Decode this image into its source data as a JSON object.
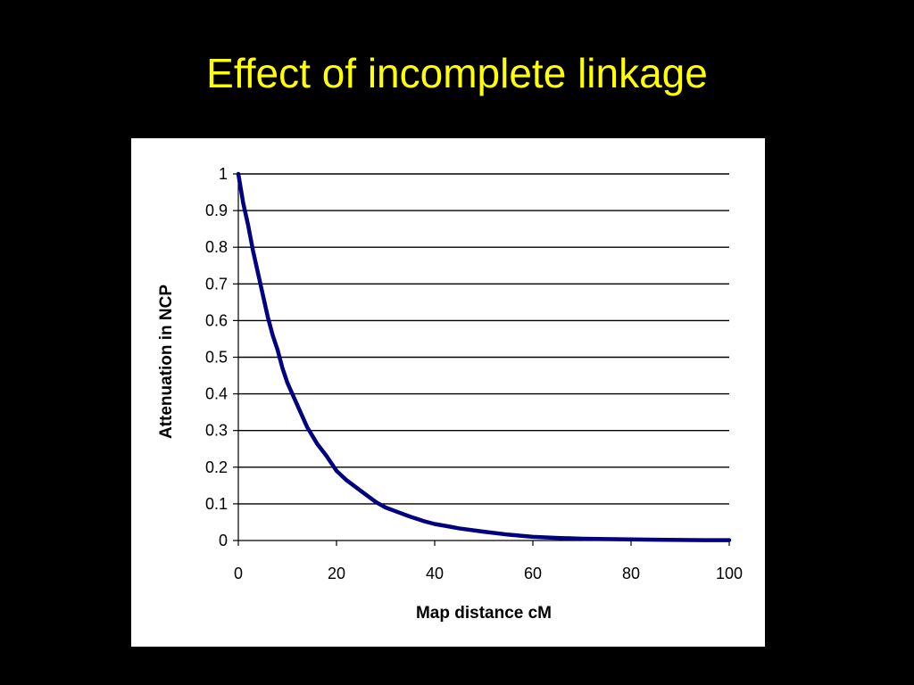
{
  "slide": {
    "title": "Effect of incomplete linkage"
  },
  "colors": {
    "background": "#000000",
    "title": "#ffff00",
    "panel": "#ffffff",
    "series": "#000080",
    "gridline": "#000000"
  },
  "chart_data": {
    "type": "line",
    "xlabel": "Map distance cM",
    "ylabel": "Attenuation in NCP",
    "xlim": [
      0,
      100
    ],
    "ylim": [
      0,
      1
    ],
    "xticks": [
      0,
      20,
      40,
      60,
      80,
      100
    ],
    "yticks": [
      0,
      0.1,
      0.2,
      0.3,
      0.4,
      0.5,
      0.6,
      0.7,
      0.8,
      0.9,
      1
    ],
    "ytick_labels": [
      "0",
      "0.1",
      "0.2",
      "0.3",
      "0.4",
      "0.5",
      "0.6",
      "0.7",
      "0.8",
      "0.9",
      "1"
    ],
    "grid": "horizontal",
    "legend": "none",
    "series": [
      {
        "x": [
          0,
          1,
          2,
          3,
          4,
          5,
          6,
          7,
          8,
          9,
          10,
          12,
          14,
          16,
          18,
          20,
          22,
          25,
          28,
          30,
          33,
          35,
          38,
          40,
          43,
          45,
          50,
          55,
          60,
          65,
          70,
          75,
          80,
          85,
          90,
          95,
          100
        ],
        "y": [
          1.0,
          0.92,
          0.86,
          0.79,
          0.73,
          0.67,
          0.61,
          0.56,
          0.52,
          0.47,
          0.43,
          0.37,
          0.31,
          0.265,
          0.23,
          0.19,
          0.165,
          0.135,
          0.105,
          0.09,
          0.075,
          0.065,
          0.052,
          0.045,
          0.038,
          0.033,
          0.024,
          0.016,
          0.01,
          0.007,
          0.005,
          0.004,
          0.003,
          0.002,
          0.0015,
          0.001,
          0.001
        ]
      }
    ]
  }
}
